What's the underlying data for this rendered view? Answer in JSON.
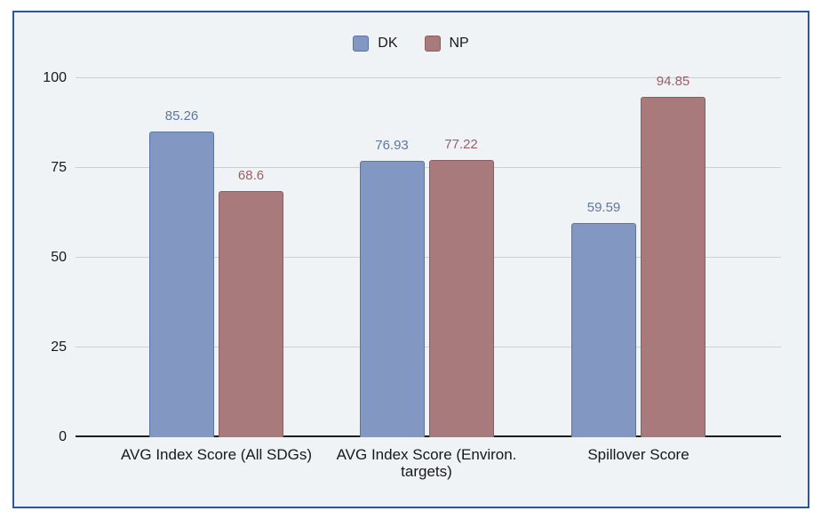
{
  "panel": {
    "background": "#eff3f5",
    "border_color": "#2d55a5"
  },
  "chart_data": {
    "type": "bar",
    "title": "",
    "xlabel": "",
    "ylabel": "",
    "categories": [
      "AVG Index Score (All SDGs)",
      "AVG Index Score (Environ.\ntargets)",
      "Spillover Score"
    ],
    "series": [
      {
        "name": "DK",
        "values": [
          85.26,
          76.93,
          59.59
        ],
        "color": "#8298c3",
        "border_color": "#5a74a6",
        "label_color": "#61779e"
      },
      {
        "name": "NP",
        "values": [
          68.6,
          77.22,
          94.85
        ],
        "color": "#a87a7c",
        "border_color": "#8b5d60",
        "label_color": "#9b6065"
      }
    ],
    "ylim": [
      0,
      100
    ],
    "yticks": [
      0,
      25,
      50,
      75,
      100
    ],
    "grid": true,
    "legend_position": "top",
    "axis_line_color": "#1c1d1f",
    "gridline_color": "#c9d1d7"
  }
}
